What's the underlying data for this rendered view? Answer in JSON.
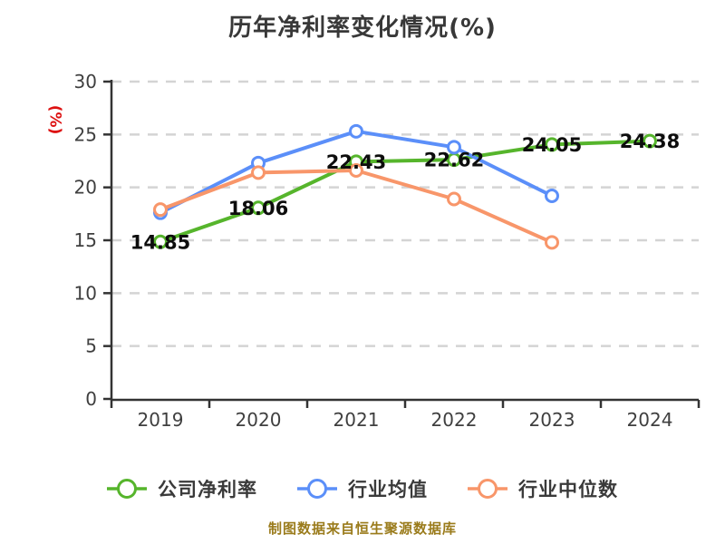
{
  "title": "历年净利率变化情况(%)",
  "y_axis_label": "(%)",
  "caption": "制图数据来自恒生聚源数据库",
  "colors": {
    "title_text": "#383838",
    "axis": "#333333",
    "grid": "#d4d4d4",
    "tick_text": "#3f3f3f",
    "data_label": "#0d0d0d",
    "y_axis_label": "#dd1111",
    "caption": "#9a7b1b"
  },
  "chart_data": {
    "type": "line",
    "title": "历年净利率变化情况(%)",
    "ylabel": "(%)",
    "categories": [
      "2019",
      "2020",
      "2021",
      "2022",
      "2023",
      "2024"
    ],
    "series": [
      {
        "name": "公司净利率",
        "color": "#56b52c",
        "values": [
          14.85,
          18.06,
          22.43,
          22.62,
          24.05,
          24.38
        ],
        "labels": [
          "14.85",
          "18.06",
          "22.43",
          "22.62",
          "24.05",
          "24.38"
        ],
        "show_labels": true
      },
      {
        "name": "行业均值",
        "color": "#5b8ff9",
        "values": [
          17.6,
          22.3,
          25.3,
          23.8,
          19.2,
          null
        ],
        "show_labels": false
      },
      {
        "name": "行业中位数",
        "color": "#f8966a",
        "values": [
          17.9,
          21.4,
          21.6,
          18.9,
          14.8,
          null
        ],
        "show_labels": false
      }
    ],
    "ylim": [
      0,
      30
    ],
    "y_ticks": [
      0,
      5,
      10,
      15,
      20,
      25,
      30
    ],
    "grid": "horizontal dashed",
    "legend_position": "bottom"
  },
  "legend": [
    {
      "label": "公司净利率",
      "color": "#56b52c"
    },
    {
      "label": "行业均值",
      "color": "#5b8ff9"
    },
    {
      "label": "行业中位数",
      "color": "#f8966a"
    }
  ]
}
